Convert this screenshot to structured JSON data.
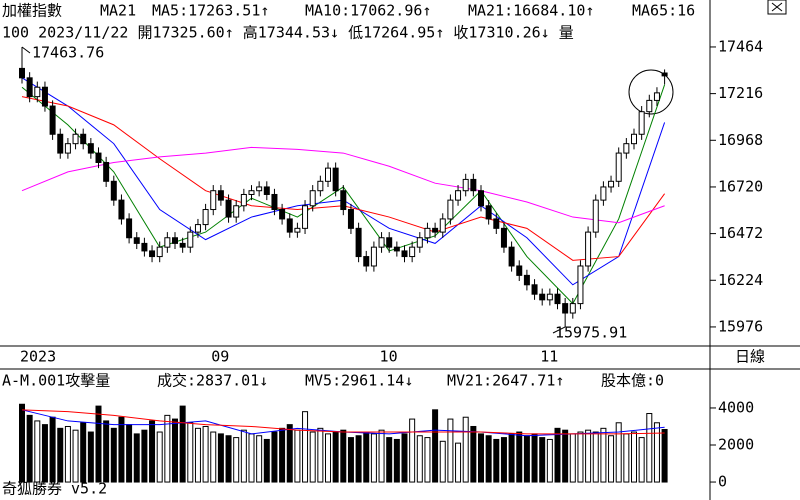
{
  "chart_data": [
    {
      "type": "candlestick",
      "title": "加權指數",
      "subtitle": "MA21",
      "info": "100 2023/11/22 開17325.60↑ 高17344.53↓ 低17264.95↑ 收17310.26↓ 量",
      "period_label": "日線",
      "categories": [
        "2023",
        null,
        null,
        null,
        null,
        null,
        null,
        null,
        null,
        null,
        null,
        null,
        null,
        null,
        null,
        null,
        null,
        null,
        null,
        null,
        null,
        null,
        null,
        null,
        null,
        "09",
        null,
        null,
        null,
        null,
        null,
        null,
        null,
        null,
        null,
        null,
        null,
        null,
        null,
        null,
        null,
        null,
        null,
        null,
        null,
        null,
        null,
        "10",
        null,
        null,
        null,
        null,
        null,
        null,
        null,
        null,
        null,
        null,
        null,
        null,
        null,
        null,
        null,
        null,
        null,
        null,
        null,
        null,
        "11",
        null,
        null,
        null,
        null,
        null,
        null,
        null,
        null,
        null,
        null,
        null,
        null,
        null,
        null,
        null,
        null
      ],
      "open": [
        17350,
        17300,
        17200,
        17250,
        17150,
        17000,
        16900,
        16950,
        17000,
        16950,
        16900,
        16850,
        16750,
        16650,
        16550,
        16450,
        16420,
        16380,
        16350,
        16400,
        16450,
        16420,
        16400,
        16480,
        16520,
        16600,
        16700,
        16650,
        16560,
        16620,
        16680,
        16700,
        16720,
        16680,
        16600,
        16550,
        16480,
        16500,
        16620,
        16700,
        16750,
        16820,
        16700,
        16600,
        16500,
        16350,
        16300,
        16400,
        16450,
        16400,
        16380,
        16350,
        16400,
        16450,
        16500,
        16480,
        16550,
        16650,
        16700,
        16760,
        16700,
        16620,
        16550,
        16500,
        16400,
        16300,
        16250,
        16200,
        16150,
        16120,
        16150,
        16100,
        16050,
        16100,
        16300,
        16480,
        16650,
        16720,
        16750,
        16900,
        16950,
        17000,
        17120,
        17180,
        17325.6
      ],
      "high": [
        17463.76,
        17330,
        17280,
        17280,
        17180,
        17030,
        16980,
        17030,
        17030,
        16980,
        16930,
        16880,
        16780,
        16680,
        16580,
        16480,
        16450,
        16410,
        16430,
        16480,
        16480,
        16450,
        16510,
        16550,
        16630,
        16730,
        16730,
        16680,
        16650,
        16710,
        16730,
        16750,
        16750,
        16710,
        16630,
        16580,
        16530,
        16650,
        16730,
        16780,
        16850,
        16850,
        16730,
        16630,
        16530,
        16380,
        16430,
        16480,
        16480,
        16430,
        16410,
        16430,
        16480,
        16530,
        16530,
        16580,
        16680,
        16730,
        16790,
        16790,
        16730,
        16650,
        16580,
        16530,
        16430,
        16330,
        16280,
        16230,
        16180,
        16180,
        16180,
        16130,
        16130,
        16330,
        16510,
        16680,
        16750,
        16780,
        16930,
        16980,
        17030,
        17150,
        17210,
        17250,
        17344.53
      ],
      "low": [
        17270,
        17170,
        17170,
        17120,
        16970,
        16870,
        16870,
        16920,
        16920,
        16870,
        16820,
        16720,
        16620,
        16520,
        16420,
        16390,
        16350,
        16320,
        16320,
        16370,
        16390,
        16370,
        16370,
        16450,
        16490,
        16570,
        16620,
        16530,
        16530,
        16590,
        16650,
        16670,
        16650,
        16570,
        16520,
        16450,
        16450,
        16470,
        16590,
        16670,
        16720,
        16670,
        16570,
        16470,
        16320,
        16270,
        16270,
        16370,
        16370,
        16350,
        16320,
        16320,
        16370,
        16420,
        16450,
        16450,
        16520,
        16620,
        16670,
        16670,
        16590,
        16520,
        16470,
        16370,
        16270,
        16220,
        16170,
        16120,
        16090,
        16090,
        16070,
        15975.91,
        16020,
        16070,
        16270,
        16450,
        16620,
        16690,
        16720,
        16870,
        16920,
        16970,
        17090,
        17150,
        17264.95
      ],
      "close": [
        17300,
        17200,
        17250,
        17150,
        17000,
        16900,
        16950,
        17000,
        16950,
        16900,
        16850,
        16750,
        16650,
        16550,
        16450,
        16420,
        16380,
        16350,
        16400,
        16450,
        16420,
        16400,
        16480,
        16520,
        16600,
        16700,
        16650,
        16560,
        16620,
        16680,
        16700,
        16720,
        16680,
        16600,
        16550,
        16480,
        16500,
        16620,
        16700,
        16750,
        16820,
        16700,
        16600,
        16500,
        16350,
        16300,
        16400,
        16450,
        16400,
        16380,
        16350,
        16400,
        16450,
        16500,
        16480,
        16550,
        16650,
        16700,
        16760,
        16700,
        16620,
        16550,
        16500,
        16400,
        16300,
        16250,
        16200,
        16150,
        16120,
        16150,
        16100,
        16050,
        16100,
        16300,
        16480,
        16650,
        16720,
        16750,
        16900,
        16950,
        17000,
        17120,
        17180,
        17220,
        17310.26
      ],
      "up_color": "#ffffff",
      "down_color": "#000000",
      "ylim": [
        15880,
        17501
      ],
      "yticks": [
        15976,
        16224,
        16472,
        16720,
        16968,
        17216,
        17464
      ],
      "series": [
        {
          "name": "MA5:17263.51↑",
          "color": "#008000",
          "x": [
            0,
            6,
            12,
            18,
            24,
            30,
            36,
            42,
            48,
            54,
            60,
            66,
            72,
            78,
            84
          ],
          "values": [
            17250,
            17050,
            16800,
            16400,
            16480,
            16660,
            16560,
            16720,
            16380,
            16460,
            16700,
            16350,
            16100,
            16550,
            17263.51
          ]
        },
        {
          "name": "MA10:17062.96↑",
          "color": "#0000ff",
          "x": [
            0,
            6,
            12,
            18,
            24,
            30,
            36,
            42,
            48,
            54,
            60,
            66,
            72,
            78,
            84
          ],
          "values": [
            17300,
            17150,
            16950,
            16600,
            16440,
            16560,
            16620,
            16650,
            16500,
            16420,
            16620,
            16450,
            16200,
            16350,
            17062.96
          ]
        },
        {
          "name": "MA21:16684.10↑",
          "color": "#ff0000",
          "x": [
            0,
            6,
            12,
            18,
            24,
            30,
            36,
            42,
            48,
            54,
            60,
            66,
            72,
            78,
            84
          ],
          "values": [
            17200,
            17150,
            17050,
            16870,
            16700,
            16620,
            16600,
            16620,
            16560,
            16480,
            16560,
            16500,
            16330,
            16350,
            16684.1
          ]
        },
        {
          "name": "MA65:16",
          "color": "#ff00ff",
          "x": [
            0,
            6,
            12,
            18,
            24,
            30,
            36,
            42,
            48,
            54,
            60,
            66,
            72,
            78,
            84
          ],
          "values": [
            16700,
            16800,
            16850,
            16880,
            16900,
            16930,
            16920,
            16900,
            16830,
            16740,
            16700,
            16640,
            16560,
            16530,
            16620
          ]
        }
      ]
    },
    {
      "type": "bar",
      "title": "A-M.001攻擊量",
      "name": "成交:2837.01↓",
      "name_color": "#008000",
      "annotation": "股本億:0",
      "annotation_color": "#ff00ff",
      "values": [
        4200,
        3600,
        3300,
        3100,
        3500,
        2900,
        3000,
        2800,
        3200,
        2700,
        4100,
        3300,
        2900,
        3500,
        3100,
        2600,
        2800,
        3300,
        2700,
        3600,
        3400,
        4100,
        3200,
        2900,
        3000,
        2700,
        2600,
        2500,
        2400,
        2800,
        2600,
        2500,
        2300,
        2700,
        2900,
        3100,
        2800,
        3800,
        2700,
        2900,
        2600,
        2700,
        2800,
        2400,
        2500,
        2700,
        2600,
        2800,
        2400,
        2300,
        2600,
        3400,
        2500,
        2400,
        3900,
        2200,
        3400,
        2100,
        3500,
        3000,
        2600,
        2500,
        2300,
        2400,
        2600,
        2700,
        2500,
        2600,
        2400,
        2300,
        2900,
        2800,
        2600,
        2700,
        2800,
        2700,
        2900,
        2500,
        3200,
        2600,
        2700,
        2400,
        3700,
        3200,
        2837.01
      ],
      "ylim": [
        -430,
        6050
      ],
      "yticks": [
        0,
        2000,
        4000
      ],
      "series": [
        {
          "name": "MV5:2961.14↓",
          "color": "#0000ff",
          "x": [
            0,
            6,
            12,
            18,
            24,
            30,
            36,
            42,
            48,
            54,
            60,
            66,
            72,
            78,
            84
          ],
          "values": [
            3900,
            3300,
            3100,
            3100,
            3300,
            2600,
            2900,
            2700,
            2600,
            2800,
            2700,
            2500,
            2600,
            2700,
            2961.14
          ]
        },
        {
          "name": "MV21:2647.71↑",
          "color": "#ff0000",
          "x": [
            0,
            6,
            12,
            18,
            24,
            30,
            36,
            42,
            48,
            54,
            60,
            66,
            72,
            78,
            84
          ],
          "values": [
            3900,
            3800,
            3600,
            3300,
            3100,
            3000,
            2800,
            2700,
            2700,
            2700,
            2700,
            2600,
            2600,
            2600,
            2647.71
          ]
        }
      ]
    }
  ],
  "footer": "奇狐勝券 v5.2"
}
